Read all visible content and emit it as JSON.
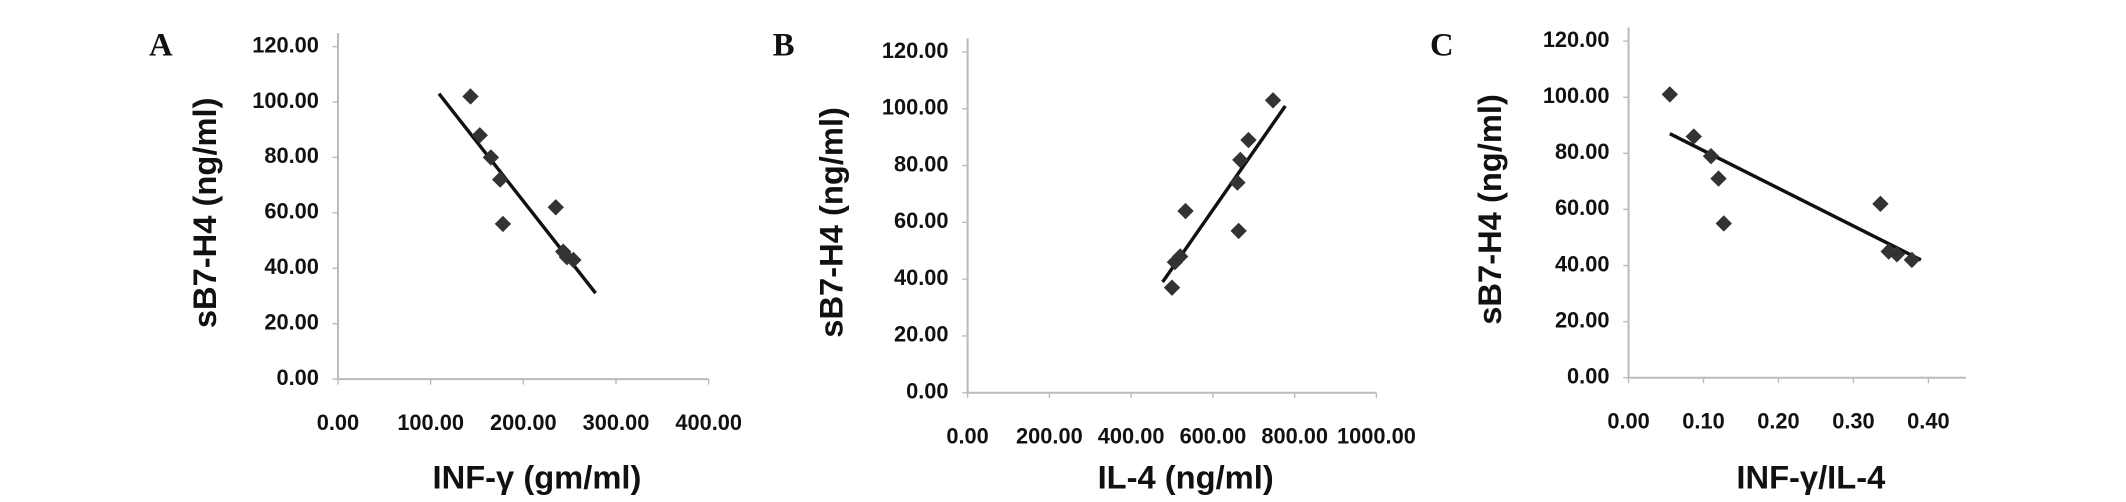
{
  "chart_data": [
    {
      "type": "scatter",
      "panel": "A",
      "xlabel": "INF-γ (gm/ml)",
      "ylabel": "sB7-H4 (ng/ml)",
      "color": "#333333",
      "x": [
        143,
        153,
        165,
        175,
        178,
        235,
        243,
        247,
        254
      ],
      "values": [
        102,
        88,
        80,
        72,
        56,
        62,
        46,
        44,
        43
      ],
      "trendline": {
        "x": [
          109,
          278
        ],
        "y": [
          103,
          31
        ]
      },
      "xlim": [
        0,
        400
      ],
      "xticks": [
        {
          "value": 0,
          "label": "0.00"
        },
        {
          "value": 100,
          "label": "100.00"
        },
        {
          "value": 200,
          "label": "200.00"
        },
        {
          "value": 300,
          "label": "300.00"
        },
        {
          "value": 400,
          "label": "400.00"
        }
      ],
      "ylim": [
        0,
        120
      ],
      "yticks": [
        {
          "value": 0,
          "label": "0.00"
        },
        {
          "value": 20,
          "label": "20.00"
        },
        {
          "value": 40,
          "label": "40.00"
        },
        {
          "value": 60,
          "label": "60.00"
        },
        {
          "value": 80,
          "label": "80.00"
        },
        {
          "value": 100,
          "label": "100.00"
        },
        {
          "value": 120,
          "label": "120.00"
        }
      ]
    },
    {
      "type": "scatter",
      "panel": "B",
      "xlabel": "IL-4 (ng/ml)",
      "ylabel": "sB7-H4 (ng/ml)",
      "color": "#333333",
      "x": [
        747,
        687,
        667,
        660,
        663,
        533,
        520,
        507,
        500
      ],
      "values": [
        103,
        89,
        82,
        74,
        57,
        64,
        48,
        46,
        37
      ],
      "trendline": {
        "x": [
          477,
          777
        ],
        "y": [
          39,
          101
        ]
      },
      "xlim": [
        0,
        1000
      ],
      "xticks": [
        {
          "value": 0,
          "label": "0.00"
        },
        {
          "value": 200,
          "label": "200.00"
        },
        {
          "value": 400,
          "label": "400.00"
        },
        {
          "value": 600,
          "label": "600.00"
        },
        {
          "value": 800,
          "label": "800.00"
        },
        {
          "value": 1000,
          "label": "1000.00"
        }
      ],
      "ylim": [
        0,
        120
      ],
      "yticks": [
        {
          "value": 0,
          "label": "0.00"
        },
        {
          "value": 20,
          "label": "20.00"
        },
        {
          "value": 40,
          "label": "40.00"
        },
        {
          "value": 60,
          "label": "60.00"
        },
        {
          "value": 80,
          "label": "80.00"
        },
        {
          "value": 100,
          "label": "100.00"
        },
        {
          "value": 120,
          "label": "120.00"
        }
      ]
    },
    {
      "type": "scatter",
      "panel": "C",
      "xlabel": "INF-γ/IL-4",
      "ylabel": "sB7-H4 (ng/ml)",
      "color": "#333333",
      "x": [
        0.055,
        0.087,
        0.11,
        0.12,
        0.127,
        0.336,
        0.347,
        0.358,
        0.378
      ],
      "values": [
        101,
        86,
        79,
        71,
        55,
        62,
        45,
        44,
        42
      ],
      "trendline": {
        "x": [
          0.055,
          0.39
        ],
        "y": [
          87,
          42
        ]
      },
      "xlim": [
        0,
        0.45
      ],
      "xticks": [
        {
          "value": 0,
          "label": "0.00"
        },
        {
          "value": 0.1,
          "label": "0.10"
        },
        {
          "value": 0.2,
          "label": "0.20"
        },
        {
          "value": 0.3,
          "label": "0.30"
        },
        {
          "value": 0.4,
          "label": "0.40"
        }
      ],
      "ylim": [
        0,
        120
      ],
      "yticks": [
        {
          "value": 0,
          "label": "0.00"
        },
        {
          "value": 20,
          "label": "20.00"
        },
        {
          "value": 40,
          "label": "40.00"
        },
        {
          "value": 60,
          "label": "60.00"
        },
        {
          "value": 80,
          "label": "80.00"
        },
        {
          "value": 100,
          "label": "100.00"
        },
        {
          "value": 120,
          "label": "120.00"
        }
      ]
    }
  ]
}
